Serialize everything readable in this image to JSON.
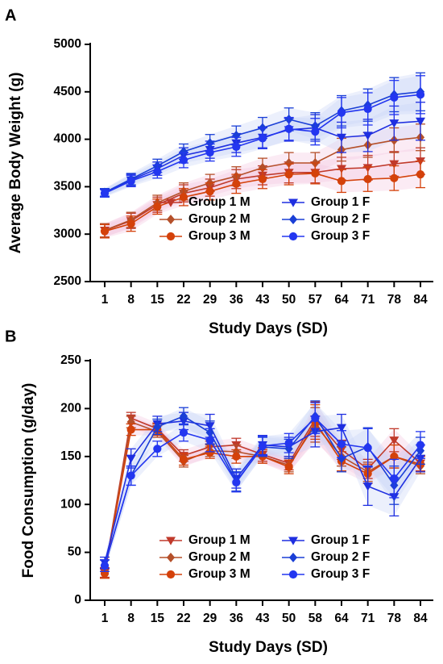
{
  "chart_data": [
    {
      "panel": "A",
      "type": "line",
      "xlabel": "Study Days (SD)",
      "ylabel": "Average Body Weight (g)",
      "x": [
        1,
        8,
        15,
        22,
        29,
        36,
        43,
        50,
        57,
        64,
        71,
        78,
        84
      ],
      "x_tick_labels": [
        "1",
        "8",
        "15",
        "22",
        "29",
        "36",
        "43",
        "50",
        "57",
        "64",
        "71",
        "78",
        "84"
      ],
      "yticks": [
        2500,
        3000,
        3500,
        4000,
        4500,
        5000
      ],
      "ylim": [
        2500,
        5000
      ],
      "legend_position": "bottom-center",
      "series": [
        {
          "name": "Group 1 M",
          "color": "#c0392b",
          "marker": "triangle-down",
          "values": [
            3040,
            3140,
            3310,
            3430,
            3490,
            3580,
            3620,
            3650,
            3650,
            3690,
            3700,
            3740,
            3770
          ],
          "errors": [
            70,
            80,
            80,
            90,
            90,
            100,
            100,
            110,
            110,
            120,
            130,
            130,
            140
          ]
        },
        {
          "name": "Group 2 M",
          "color": "#b5502a",
          "marker": "diamond",
          "values": [
            3040,
            3150,
            3330,
            3450,
            3540,
            3610,
            3700,
            3750,
            3750,
            3890,
            3940,
            3990,
            4020
          ],
          "errors": [
            70,
            80,
            80,
            90,
            90,
            100,
            100,
            110,
            110,
            120,
            130,
            130,
            140
          ]
        },
        {
          "name": "Group 3 M",
          "color": "#d4410a",
          "marker": "circle",
          "values": [
            3030,
            3110,
            3290,
            3390,
            3450,
            3530,
            3580,
            3630,
            3640,
            3560,
            3580,
            3590,
            3630
          ],
          "errors": [
            70,
            80,
            80,
            90,
            90,
            100,
            100,
            110,
            110,
            120,
            130,
            130,
            140
          ]
        },
        {
          "name": "Group 1 F",
          "color": "#1f2fe0",
          "marker": "triangle-down",
          "values": [
            3440,
            3570,
            3690,
            3830,
            3890,
            3960,
            4020,
            4100,
            4120,
            4020,
            4040,
            4170,
            4190
          ],
          "errors": [
            40,
            60,
            70,
            80,
            90,
            100,
            110,
            120,
            140,
            160,
            170,
            180,
            200
          ]
        },
        {
          "name": "Group 2 F",
          "color": "#1a3fd6",
          "marker": "diamond",
          "values": [
            3440,
            3580,
            3720,
            3870,
            3960,
            4040,
            4120,
            4210,
            4140,
            4300,
            4360,
            4470,
            4500
          ],
          "errors": [
            40,
            60,
            70,
            80,
            90,
            100,
            110,
            120,
            140,
            160,
            170,
            180,
            200
          ]
        },
        {
          "name": "Group 3 F",
          "color": "#2336f0",
          "marker": "circle",
          "values": [
            3430,
            3560,
            3660,
            3780,
            3860,
            3920,
            4010,
            4110,
            4080,
            4280,
            4320,
            4440,
            4470
          ],
          "errors": [
            40,
            60,
            70,
            80,
            90,
            100,
            110,
            120,
            140,
            160,
            170,
            180,
            200
          ]
        }
      ]
    },
    {
      "panel": "B",
      "type": "line",
      "xlabel": "Study Days (SD)",
      "ylabel": "Food Consumption (g/day)",
      "x": [
        1,
        8,
        15,
        22,
        29,
        36,
        43,
        50,
        58,
        64,
        71,
        78,
        84
      ],
      "x_tick_labels": [
        "1",
        "8",
        "15",
        "22",
        "29",
        "36",
        "43",
        "50",
        "58",
        "64",
        "71",
        "78",
        "84"
      ],
      "yticks": [
        0,
        50,
        100,
        150,
        200,
        250
      ],
      "ylim": [
        0,
        250
      ],
      "legend_position": "bottom-center",
      "series": [
        {
          "name": "Group 1 M",
          "color": "#c0392b",
          "marker": "triangle-down",
          "values": [
            29,
            190,
            179,
            151,
            160,
            162,
            152,
            143,
            189,
            157,
            137,
            167,
            143
          ],
          "errors": [
            5,
            6,
            6,
            6,
            6,
            7,
            7,
            7,
            18,
            10,
            10,
            12,
            8
          ]
        },
        {
          "name": "Group 2 M",
          "color": "#b5502a",
          "marker": "diamond",
          "values": [
            28,
            186,
            176,
            145,
            156,
            155,
            150,
            141,
            183,
            150,
            134,
            150,
            140
          ],
          "errors": [
            5,
            6,
            6,
            6,
            6,
            7,
            7,
            7,
            18,
            10,
            10,
            12,
            8
          ]
        },
        {
          "name": "Group 3 M",
          "color": "#d4410a",
          "marker": "circle",
          "values": [
            28,
            178,
            178,
            147,
            154,
            150,
            150,
            139,
            186,
            145,
            132,
            150,
            142
          ],
          "errors": [
            5,
            6,
            6,
            6,
            6,
            7,
            7,
            7,
            18,
            10,
            10,
            12,
            8
          ]
        },
        {
          "name": "Group 1 F",
          "color": "#1f2fe0",
          "marker": "triangle-down",
          "values": [
            39,
            148,
            184,
            187,
            182,
            127,
            162,
            160,
            176,
            180,
            119,
            108,
            148
          ],
          "errors": [
            6,
            10,
            8,
            9,
            12,
            10,
            10,
            10,
            16,
            14,
            20,
            20,
            14
          ]
        },
        {
          "name": "Group 2 F",
          "color": "#1a3fd6",
          "marker": "diamond",
          "values": [
            36,
            130,
            181,
            192,
            175,
            124,
            160,
            158,
            192,
            148,
            160,
            120,
            156
          ],
          "errors": [
            6,
            10,
            8,
            9,
            12,
            10,
            10,
            10,
            16,
            14,
            20,
            20,
            14
          ]
        },
        {
          "name": "Group 3 F",
          "color": "#2336f0",
          "marker": "circle",
          "values": [
            36,
            130,
            158,
            175,
            167,
            123,
            161,
            164,
            190,
            163,
            159,
            127,
            162
          ],
          "errors": [
            6,
            10,
            8,
            9,
            12,
            10,
            10,
            10,
            16,
            14,
            20,
            20,
            14
          ]
        }
      ]
    }
  ]
}
